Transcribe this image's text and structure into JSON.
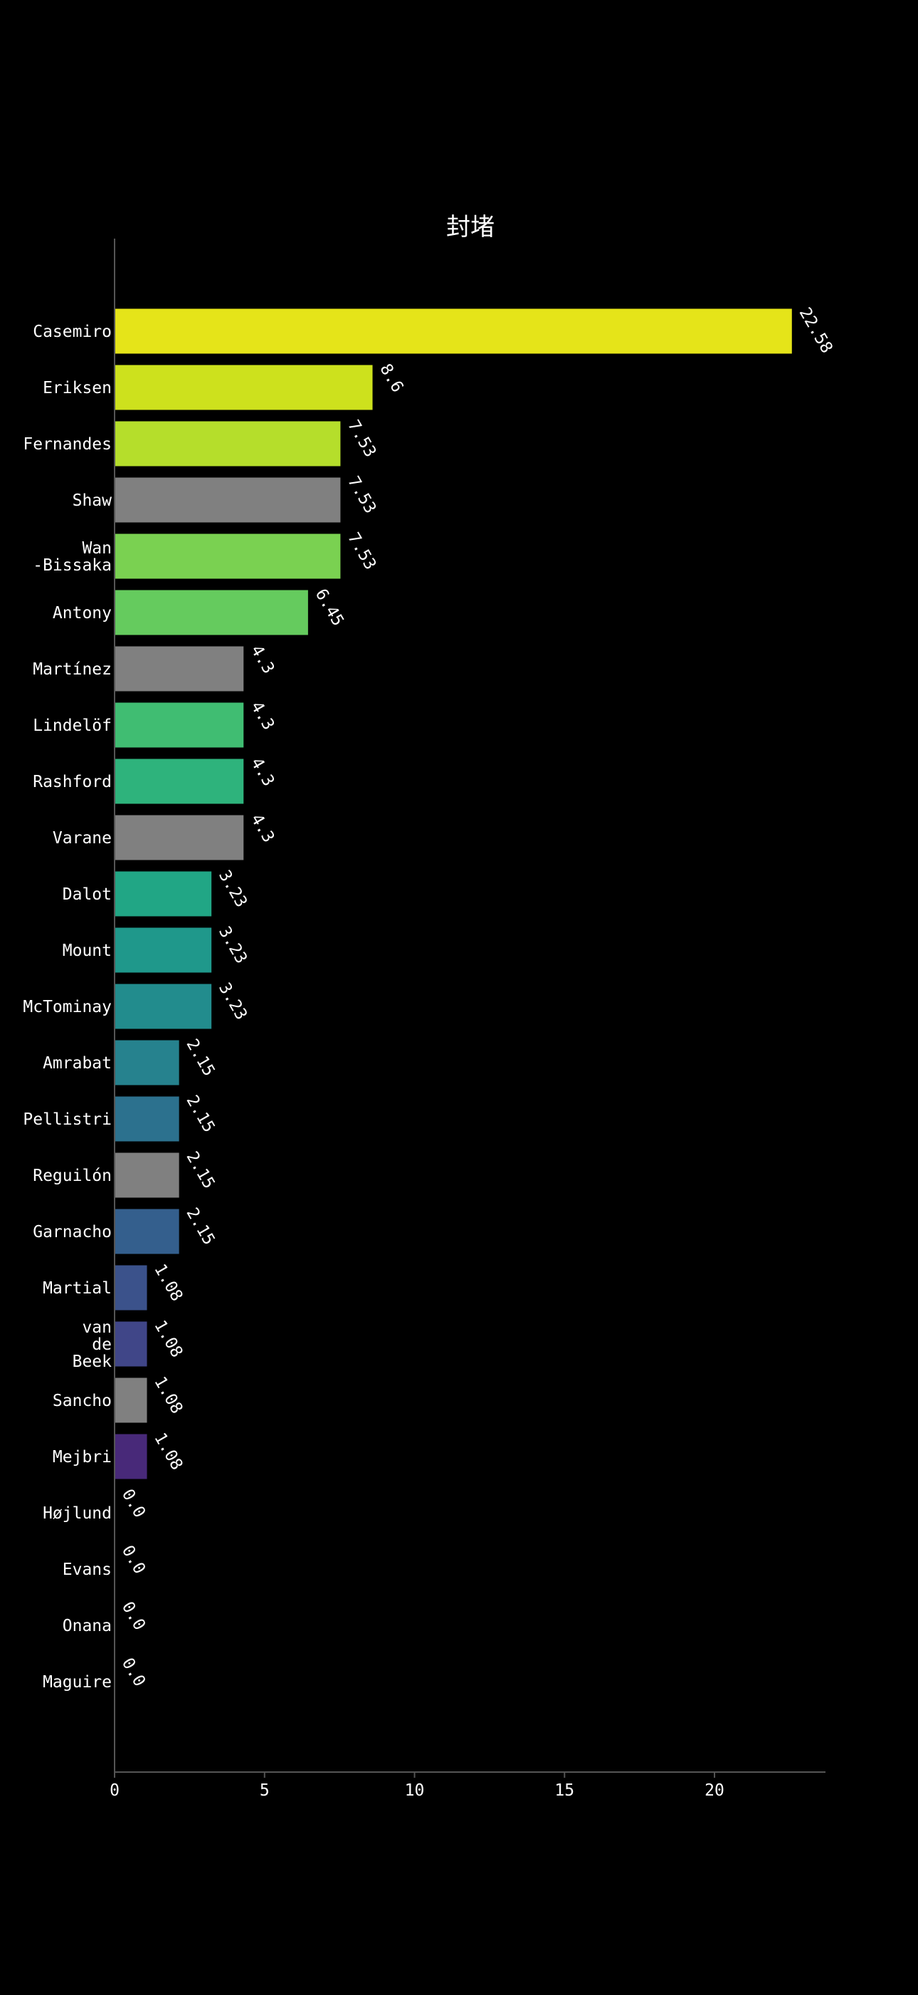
{
  "chart_data": {
    "type": "bar",
    "orientation": "horizontal",
    "title": "封堵",
    "xlabel": "",
    "ylabel": "",
    "xlim": [
      0,
      23.7
    ],
    "xticks": [
      0,
      5,
      10,
      15,
      20
    ],
    "grid": false,
    "legend": "none",
    "background": "#000000",
    "text_color": "#ffffff",
    "categories": [
      [
        "Casemiro"
      ],
      [
        "Eriksen"
      ],
      [
        "Fernandes"
      ],
      [
        "Shaw"
      ],
      [
        "Wan",
        "-Bissaka"
      ],
      [
        "Antony"
      ],
      [
        "Martínez"
      ],
      [
        "Lindelöf"
      ],
      [
        "Rashford"
      ],
      [
        "Varane"
      ],
      [
        "Dalot"
      ],
      [
        "Mount"
      ],
      [
        "McTominay"
      ],
      [
        "Amrabat"
      ],
      [
        "Pellistri"
      ],
      [
        "Reguilón"
      ],
      [
        "Garnacho"
      ],
      [
        "Martial"
      ],
      [
        "van",
        "de",
        "Beek"
      ],
      [
        "Sancho"
      ],
      [
        "Mejbri"
      ],
      [
        "Højlund"
      ],
      [
        "Evans"
      ],
      [
        "Onana"
      ],
      [
        "Maguire"
      ]
    ],
    "values": [
      22.58,
      8.6,
      7.53,
      7.53,
      7.53,
      6.45,
      4.3,
      4.3,
      4.3,
      4.3,
      3.23,
      3.23,
      3.23,
      2.15,
      2.15,
      2.15,
      2.15,
      1.08,
      1.08,
      1.08,
      1.08,
      0.0,
      0.0,
      0.0,
      0.0
    ],
    "value_labels": [
      "22.58",
      "8.6",
      "7.53",
      "7.53",
      "7.53",
      "6.45",
      "4.3",
      "4.3",
      "4.3",
      "4.3",
      "3.23",
      "3.23",
      "3.23",
      "2.15",
      "2.15",
      "2.15",
      "2.15",
      "1.08",
      "1.08",
      "1.08",
      "1.08",
      "0.0",
      "0.0",
      "0.0",
      "0.0"
    ],
    "colors": [
      "#e5e419",
      "#cde11d",
      "#b5de2b",
      "#808080",
      "#7ad151",
      "#65cb5e",
      "#808080",
      "#40bd72",
      "#2eb37c",
      "#808080",
      "#21a685",
      "#1f988b",
      "#228c8d",
      "#26828e",
      "#2c718e",
      "#808080",
      "#345f8d",
      "#3b528b",
      "#404688",
      "#808080",
      "#482979",
      "#46075a",
      "#450457",
      "#440256",
      "#440154"
    ]
  }
}
